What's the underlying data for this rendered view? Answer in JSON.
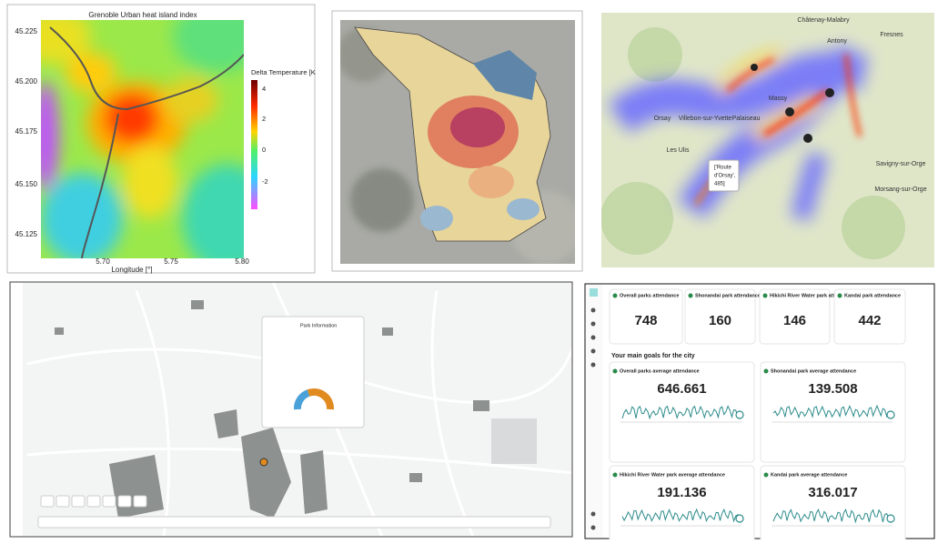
{
  "heat_index_map": {
    "title": "Grenoble Urban heat island index",
    "colorbar_label": "Delta Temperature [K",
    "colorbar_ticks": [
      "4",
      "2",
      "0",
      "-2"
    ],
    "y_ticks": [
      "45.225",
      "45.200",
      "45.175",
      "45.150",
      "45.125"
    ],
    "x_ticks": [
      "5.70",
      "5.75",
      "5.80"
    ],
    "x_label": "Longitude [°]"
  },
  "heatmap": {
    "places": [
      "Châtenay-Malabry",
      "Massy",
      "Palaiseau",
      "Villebon-sur-Yvette",
      "Les Ulis",
      "Orsay",
      "Fresnes",
      "Antony",
      "Savigny-sur-Orge",
      "Morsang-sur-Orge"
    ],
    "tooltip": [
      "['Route",
      "d'Orsay',",
      "485]"
    ]
  },
  "park_map": {
    "panel_title": "Park Information"
  },
  "dashboard": {
    "cards": [
      {
        "label": "Overall parks attendance",
        "value": 748
      },
      {
        "label": "Shonandai park attendance",
        "value": 160
      },
      {
        "label": "Hikichi River Water park attendance",
        "value": 146
      },
      {
        "label": "Kandai park attendance",
        "value": 442
      }
    ],
    "goals_heading": "Your main goals for the city",
    "goals": [
      {
        "label": "Overall parks average attendance",
        "value": 646.661
      },
      {
        "label": "Shonandai park average attendance",
        "value": 139.508
      },
      {
        "label": "Hikichi River Water park average attendance",
        "value": 191.136
      },
      {
        "label": "Kandai park average attendance",
        "value": 316.017
      }
    ]
  }
}
